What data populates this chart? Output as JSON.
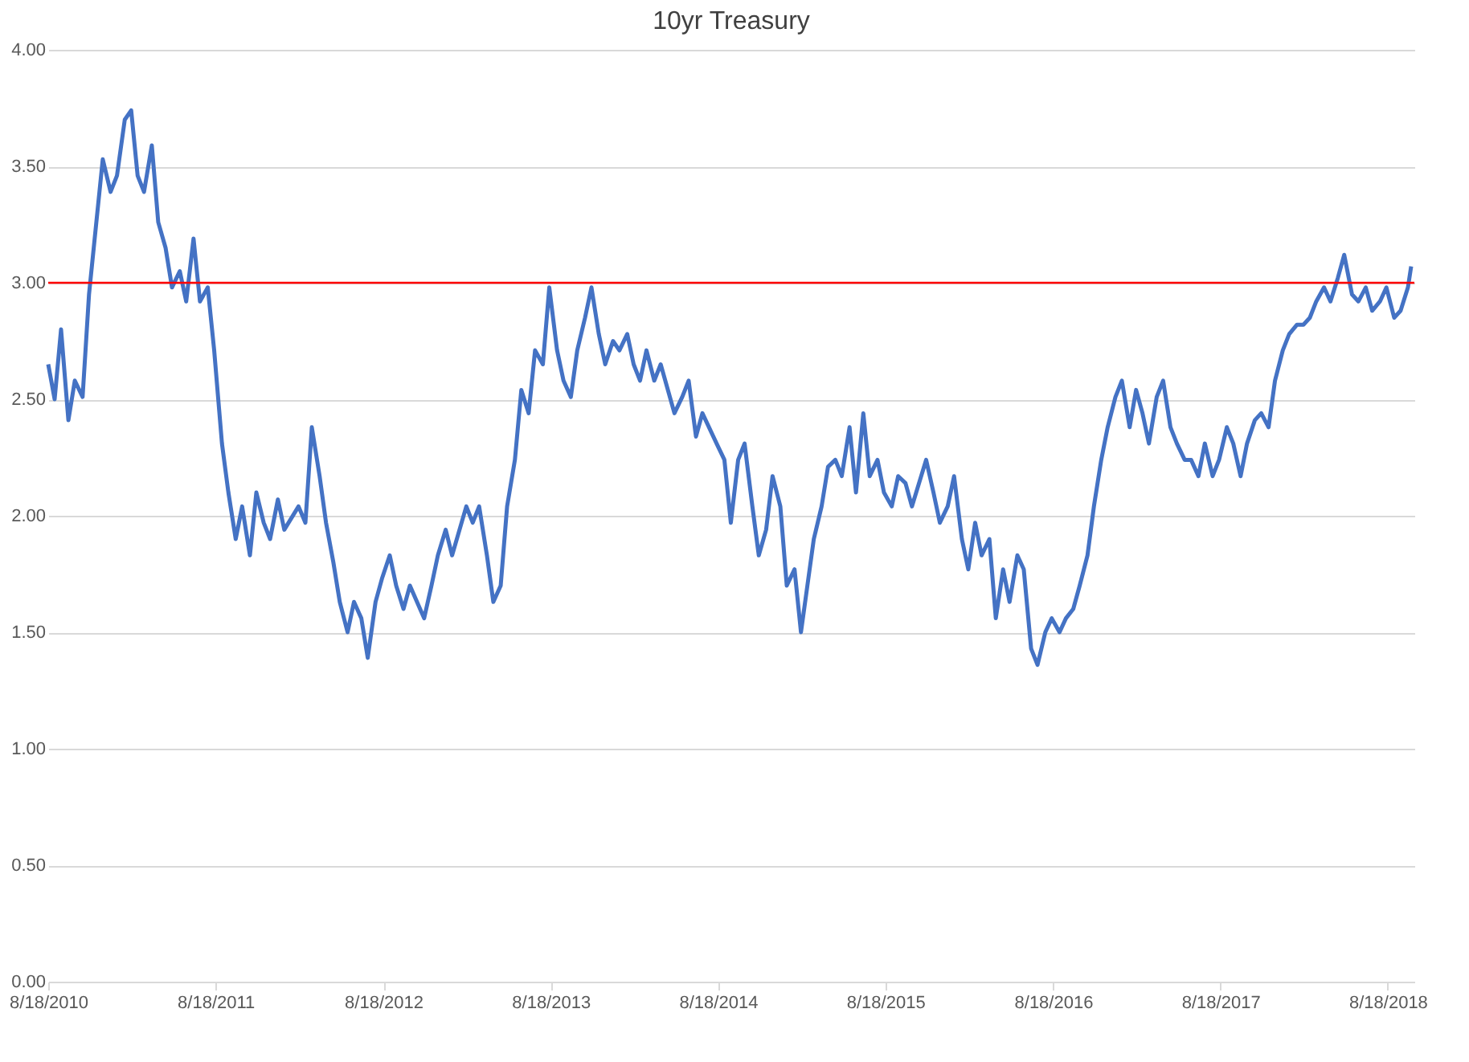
{
  "chart_data": {
    "type": "line",
    "title": "10yr Treasury",
    "x": [
      "2010-08-18",
      "2010-09-01",
      "2010-09-15",
      "2010-10-01",
      "2010-10-15",
      "2010-11-01",
      "2010-11-15",
      "2010-12-01",
      "2010-12-15",
      "2011-01-01",
      "2011-01-15",
      "2011-02-01",
      "2011-02-15",
      "2011-03-01",
      "2011-03-15",
      "2011-04-01",
      "2011-04-15",
      "2011-05-01",
      "2011-05-15",
      "2011-06-01",
      "2011-06-15",
      "2011-07-01",
      "2011-07-15",
      "2011-08-01",
      "2011-08-15",
      "2011-09-01",
      "2011-09-15",
      "2011-10-01",
      "2011-10-15",
      "2011-11-01",
      "2011-11-15",
      "2011-12-01",
      "2011-12-15",
      "2012-01-01",
      "2012-01-15",
      "2012-02-15",
      "2012-03-01",
      "2012-03-15",
      "2012-04-01",
      "2012-04-15",
      "2012-05-01",
      "2012-05-15",
      "2012-06-01",
      "2012-06-15",
      "2012-07-01",
      "2012-07-15",
      "2012-08-01",
      "2012-08-15",
      "2012-09-01",
      "2012-09-15",
      "2012-10-01",
      "2012-10-15",
      "2012-11-15",
      "2012-12-01",
      "2012-12-15",
      "2013-01-01",
      "2013-01-15",
      "2013-02-15",
      "2013-03-01",
      "2013-03-15",
      "2013-04-01",
      "2013-04-15",
      "2013-05-01",
      "2013-05-15",
      "2013-06-01",
      "2013-06-15",
      "2013-07-01",
      "2013-07-15",
      "2013-08-01",
      "2013-08-15",
      "2013-09-01",
      "2013-09-15",
      "2013-10-01",
      "2013-10-15",
      "2013-11-01",
      "2013-11-15",
      "2013-12-01",
      "2013-12-15",
      "2014-01-01",
      "2014-01-15",
      "2014-02-01",
      "2014-02-15",
      "2014-03-01",
      "2014-03-15",
      "2014-04-01",
      "2014-04-15",
      "2014-05-15",
      "2014-06-01",
      "2014-06-15",
      "2014-07-01",
      "2014-07-15",
      "2014-08-15",
      "2014-09-01",
      "2014-09-15",
      "2014-10-01",
      "2014-10-15",
      "2014-11-01",
      "2014-11-15",
      "2014-12-01",
      "2014-12-15",
      "2015-01-01",
      "2015-01-15",
      "2015-02-01",
      "2015-02-15",
      "2015-03-01",
      "2015-03-15",
      "2015-04-01",
      "2015-04-15",
      "2015-05-01",
      "2015-05-15",
      "2015-06-01",
      "2015-06-15",
      "2015-07-01",
      "2015-07-15",
      "2015-08-01",
      "2015-08-15",
      "2015-09-01",
      "2015-09-15",
      "2015-10-01",
      "2015-10-15",
      "2015-11-15",
      "2015-12-01",
      "2015-12-15",
      "2016-01-01",
      "2016-01-15",
      "2016-02-01",
      "2016-02-15",
      "2016-03-01",
      "2016-03-15",
      "2016-04-01",
      "2016-04-15",
      "2016-05-01",
      "2016-05-15",
      "2016-06-01",
      "2016-06-15",
      "2016-07-01",
      "2016-07-15",
      "2016-08-01",
      "2016-08-15",
      "2016-09-01",
      "2016-09-15",
      "2016-10-01",
      "2016-10-15",
      "2016-11-01",
      "2016-11-15",
      "2016-12-01",
      "2016-12-15",
      "2017-01-01",
      "2017-01-15",
      "2017-02-01",
      "2017-02-15",
      "2017-03-01",
      "2017-03-15",
      "2017-04-01",
      "2017-04-15",
      "2017-05-01",
      "2017-05-15",
      "2017-06-01",
      "2017-06-15",
      "2017-07-01",
      "2017-07-15",
      "2017-08-01",
      "2017-08-15",
      "2017-09-01",
      "2017-09-15",
      "2017-10-01",
      "2017-10-15",
      "2017-11-01",
      "2017-11-15",
      "2017-12-01",
      "2017-12-15",
      "2018-01-01",
      "2018-01-15",
      "2018-02-01",
      "2018-02-15",
      "2018-03-01",
      "2018-03-15",
      "2018-04-01",
      "2018-04-15",
      "2018-05-01",
      "2018-05-15",
      "2018-06-01",
      "2018-06-15",
      "2018-07-01",
      "2018-07-15",
      "2018-08-01",
      "2018-08-15",
      "2018-09-01",
      "2018-09-15",
      "2018-10-01",
      "2018-10-08"
    ],
    "series": [
      {
        "color": "#4472c4",
        "values": [
          2.65,
          2.5,
          2.8,
          2.41,
          2.58,
          2.51,
          2.95,
          3.26,
          3.53,
          3.39,
          3.46,
          3.7,
          3.74,
          3.46,
          3.39,
          3.59,
          3.26,
          3.15,
          2.98,
          3.05,
          2.92,
          3.19,
          2.92,
          2.98,
          2.71,
          2.31,
          2.1,
          1.9,
          2.04,
          1.83,
          2.1,
          1.97,
          1.9,
          2.07,
          1.94,
          2.04,
          1.97,
          2.38,
          2.17,
          1.97,
          1.8,
          1.63,
          1.5,
          1.63,
          1.56,
          1.39,
          1.63,
          1.73,
          1.83,
          1.7,
          1.6,
          1.7,
          1.56,
          1.7,
          1.83,
          1.94,
          1.83,
          2.04,
          1.97,
          2.04,
          1.83,
          1.63,
          1.7,
          2.04,
          2.24,
          2.54,
          2.44,
          2.71,
          2.65,
          2.98,
          2.71,
          2.58,
          2.51,
          2.71,
          2.85,
          2.98,
          2.78,
          2.65,
          2.75,
          2.71,
          2.78,
          2.65,
          2.58,
          2.71,
          2.58,
          2.65,
          2.44,
          2.51,
          2.58,
          2.34,
          2.44,
          2.31,
          2.24,
          1.97,
          2.24,
          2.31,
          2.04,
          1.83,
          1.94,
          2.17,
          2.04,
          1.7,
          1.77,
          1.5,
          1.7,
          1.9,
          2.04,
          2.21,
          2.24,
          2.17,
          2.38,
          2.1,
          2.44,
          2.17,
          2.24,
          2.1,
          2.04,
          2.17,
          2.14,
          2.04,
          2.24,
          2.1,
          1.97,
          2.04,
          2.17,
          1.9,
          1.77,
          1.97,
          1.83,
          1.9,
          1.56,
          1.77,
          1.63,
          1.83,
          1.77,
          1.43,
          1.36,
          1.5,
          1.56,
          1.5,
          1.56,
          1.6,
          1.7,
          1.83,
          2.04,
          2.24,
          2.38,
          2.51,
          2.58,
          2.38,
          2.54,
          2.44,
          2.31,
          2.51,
          2.58,
          2.38,
          2.31,
          2.24,
          2.24,
          2.17,
          2.31,
          2.17,
          2.24,
          2.38,
          2.31,
          2.17,
          2.31,
          2.41,
          2.44,
          2.38,
          2.58,
          2.71,
          2.78,
          2.82,
          2.82,
          2.85,
          2.92,
          2.98,
          2.92,
          3.02,
          3.12,
          2.95,
          2.92,
          2.98,
          2.88,
          2.92,
          2.98,
          2.85,
          2.88,
          2.98,
          3.07
        ]
      }
    ],
    "xlim": [
      "2010-08-18",
      "2018-10-15"
    ],
    "xticks": [
      {
        "value": "2010-08-18",
        "label": "8/18/2010"
      },
      {
        "value": "2011-08-18",
        "label": "8/18/2011"
      },
      {
        "value": "2012-08-18",
        "label": "8/18/2012"
      },
      {
        "value": "2013-08-18",
        "label": "8/18/2013"
      },
      {
        "value": "2014-08-18",
        "label": "8/18/2014"
      },
      {
        "value": "2015-08-18",
        "label": "8/18/2015"
      },
      {
        "value": "2016-08-18",
        "label": "8/18/2016"
      },
      {
        "value": "2017-08-18",
        "label": "8/18/2017"
      },
      {
        "value": "2018-08-18",
        "label": "8/18/2018"
      }
    ],
    "ylim": [
      0,
      4
    ],
    "yticks": [
      {
        "value": 0,
        "label": "0.00"
      },
      {
        "value": 0.5,
        "label": "0.50"
      },
      {
        "value": 1,
        "label": "1.00"
      },
      {
        "value": 1.5,
        "label": "1.50"
      },
      {
        "value": 2,
        "label": "2.00"
      },
      {
        "value": 2.5,
        "label": "2.50"
      },
      {
        "value": 3,
        "label": "3.00"
      },
      {
        "value": 3.5,
        "label": "3.50"
      },
      {
        "value": 4,
        "label": "4.00"
      }
    ],
    "grid": "y",
    "ref_lines": [
      {
        "axis": "y",
        "value": 3,
        "color": "#ff0000"
      }
    ]
  }
}
